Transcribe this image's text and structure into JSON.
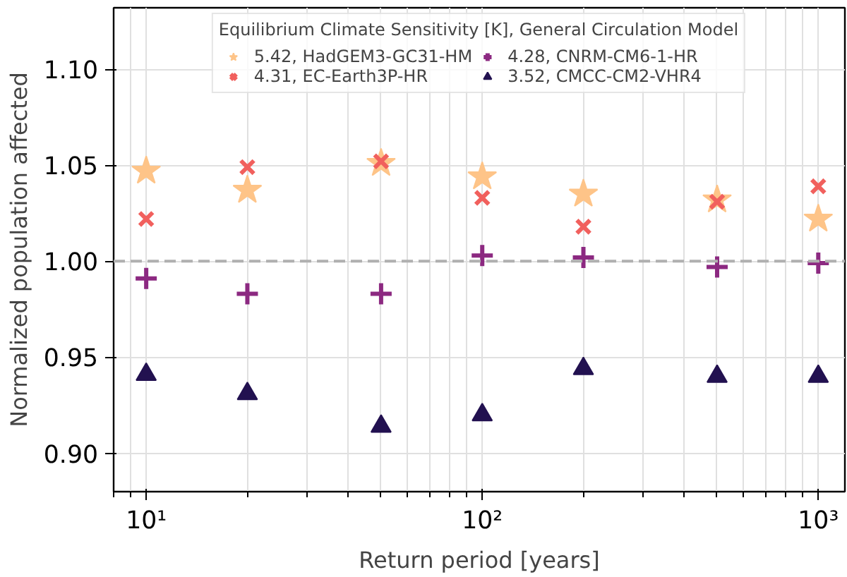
{
  "chart_data": {
    "type": "scatter",
    "xlabel": "Return period [years]",
    "ylabel": "Normalized population affected",
    "legend_title": "Equilibrium Climate Sensitivity [K], General Circulation Model",
    "x": [
      10,
      20,
      50,
      100,
      200,
      500,
      1000
    ],
    "series": [
      {
        "name": "5.42, HadGEM3-GC31-HM",
        "color": "#fec488",
        "marker": "star",
        "values": [
          1.047,
          1.037,
          1.051,
          1.044,
          1.035,
          1.032,
          1.022
        ]
      },
      {
        "name": "4.31, EC-Earth3P-HR",
        "color": "#f1605d",
        "marker": "x",
        "values": [
          1.022,
          1.049,
          1.052,
          1.033,
          1.018,
          1.031,
          1.039
        ]
      },
      {
        "name": "4.28, CNRM-CM6-1-HR",
        "color": "#8c2981",
        "marker": "cross",
        "values": [
          0.991,
          0.983,
          0.983,
          1.003,
          1.002,
          0.997,
          0.999
        ]
      },
      {
        "name": "3.52, CMCC-CM2-VHR4",
        "color": "#221150",
        "marker": "triangle",
        "values": [
          0.941,
          0.931,
          0.914,
          0.92,
          0.944,
          0.94,
          0.94
        ]
      }
    ],
    "log": "x",
    "xlim": [
      8,
      1200
    ],
    "ylim": [
      0.88,
      1.132
    ],
    "xticks": [
      {
        "value": 10,
        "label": "10¹"
      },
      {
        "value": 100,
        "label": "10²"
      },
      {
        "value": 1000,
        "label": "10³"
      }
    ],
    "yticks": [
      {
        "value": 0.9,
        "label": "0.90"
      },
      {
        "value": 0.95,
        "label": "0.95"
      },
      {
        "value": 1.0,
        "label": "1.00"
      },
      {
        "value": 1.05,
        "label": "1.05"
      },
      {
        "value": 1.1,
        "label": "1.10"
      }
    ],
    "ref_lines": [
      {
        "axis": "y",
        "value": 1.0,
        "label": null,
        "color": "#b0b0b0",
        "line_style": "dashed"
      }
    ],
    "grid": true,
    "legend": "top"
  }
}
